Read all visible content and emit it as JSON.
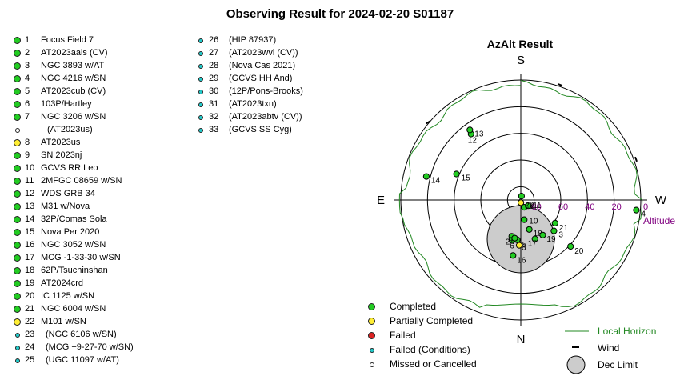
{
  "title": "Observing Result for 2024-02-20 S01187",
  "colors": {
    "completed": "#22cc22",
    "partial": "#ffee33",
    "failed": "#dd2222",
    "failed_conditions": "#22cccc",
    "missed": "#ffffff",
    "horizon": "#228822",
    "altitude_label": "#800080",
    "dec_limit": "#cccccc"
  },
  "targets_col1": [
    {
      "num": "1",
      "name": "Focus Field 7",
      "status": "completed"
    },
    {
      "num": "2",
      "name": "AT2023aais (CV)",
      "status": "completed"
    },
    {
      "num": "3",
      "name": "NGC 3893 w/AT",
      "status": "completed"
    },
    {
      "num": "4",
      "name": "NGC 4216 w/SN",
      "status": "completed"
    },
    {
      "num": "5",
      "name": "AT2023cub (CV)",
      "status": "completed"
    },
    {
      "num": "6",
      "name": "103P/Hartley",
      "status": "completed"
    },
    {
      "num": "7",
      "name": "NGC 3206 w/SN",
      "status": "completed"
    },
    {
      "num": "",
      "name": "(AT2023us)",
      "status": "missed"
    },
    {
      "num": "8",
      "name": "AT2023us",
      "status": "partial"
    },
    {
      "num": "9",
      "name": "SN 2023nj",
      "status": "completed"
    },
    {
      "num": "10",
      "name": "GCVS RR Leo",
      "status": "completed"
    },
    {
      "num": "11",
      "name": "2MFGC 08659 w/SN",
      "status": "completed"
    },
    {
      "num": "12",
      "name": "WDS GRB 34",
      "status": "completed"
    },
    {
      "num": "13",
      "name": "M31 w/Nova",
      "status": "completed"
    },
    {
      "num": "14",
      "name": "32P/Comas Sola",
      "status": "completed"
    },
    {
      "num": "15",
      "name": "Nova Per 2020",
      "status": "completed"
    },
    {
      "num": "16",
      "name": "NGC 3052 w/SN",
      "status": "completed"
    },
    {
      "num": "17",
      "name": "MCG -1-33-30 w/SN",
      "status": "completed"
    },
    {
      "num": "18",
      "name": "62P/Tsuchinshan",
      "status": "completed"
    },
    {
      "num": "19",
      "name": "AT2024crd",
      "status": "completed"
    },
    {
      "num": "20",
      "name": "IC 1125 w/SN",
      "status": "completed"
    },
    {
      "num": "21",
      "name": "NGC 6004 w/SN",
      "status": "completed"
    },
    {
      "num": "22",
      "name": "M101 w/SN",
      "status": "partial"
    },
    {
      "num": "23",
      "name": "(NGC 6106 w/SN)",
      "status": "failed_conditions"
    },
    {
      "num": "24",
      "name": "(MCG +9-27-70 w/SN)",
      "status": "failed_conditions"
    },
    {
      "num": "25",
      "name": "(UGC 11097 w/AT)",
      "status": "failed_conditions"
    }
  ],
  "targets_col2": [
    {
      "num": "26",
      "name": "(HIP 87937)",
      "status": "failed_conditions"
    },
    {
      "num": "27",
      "name": "(AT2023wvl (CV))",
      "status": "failed_conditions"
    },
    {
      "num": "28",
      "name": "(Nova Cas 2021)",
      "status": "failed_conditions"
    },
    {
      "num": "29",
      "name": "(GCVS HH And)",
      "status": "failed_conditions"
    },
    {
      "num": "30",
      "name": "(12P/Pons-Brooks)",
      "status": "failed_conditions"
    },
    {
      "num": "31",
      "name": "(AT2023txn)",
      "status": "failed_conditions"
    },
    {
      "num": "32",
      "name": "(AT2023abtv (CV))",
      "status": "failed_conditions"
    },
    {
      "num": "33",
      "name": "(GCVS SS Cyg)",
      "status": "failed_conditions"
    }
  ],
  "chart_data": {
    "type": "scatter",
    "projection": "polar azimuth-altitude",
    "title": "AzAlt Result",
    "compass": {
      "top": "S",
      "bottom": "N",
      "left": "E",
      "right": "W"
    },
    "altitude_axis_label": "Altitude",
    "altitude_ticks": [
      "80",
      "60",
      "40",
      "20",
      "0"
    ],
    "altitude_tick_values": [
      80,
      60,
      40,
      20,
      0
    ],
    "altitude_range": [
      0,
      90
    ],
    "points": [
      {
        "label": "1",
        "az": 205,
        "alt": 84,
        "status": "completed"
      },
      {
        "label": "2",
        "az": 166,
        "alt": 62,
        "status": "completed"
      },
      {
        "label": "3",
        "az": 227,
        "alt": 56,
        "status": "completed"
      },
      {
        "label": "4",
        "az": 265,
        "alt": 3,
        "status": "completed"
      },
      {
        "label": "5",
        "az": 175,
        "alt": 60,
        "status": "completed"
      },
      {
        "label": "6",
        "az": 168,
        "alt": 59,
        "status": "completed"
      },
      {
        "label": "7",
        "az": 350,
        "alt": 87,
        "status": "completed"
      },
      {
        "label": "8",
        "az": 178,
        "alt": 56,
        "status": "partial"
      },
      {
        "label": "9",
        "az": 171,
        "alt": 61,
        "status": "completed"
      },
      {
        "label": "10",
        "az": 190,
        "alt": 75,
        "status": "completed"
      },
      {
        "label": "11",
        "az": 232,
        "alt": 83,
        "status": "completed"
      },
      {
        "label": "12",
        "az": 37,
        "alt": 28,
        "status": "completed"
      },
      {
        "label": "13",
        "az": 36,
        "alt": 25,
        "status": "completed"
      },
      {
        "label": "14",
        "az": 76,
        "alt": 17,
        "status": "completed"
      },
      {
        "label": "15",
        "az": 68,
        "alt": 38,
        "status": "completed"
      },
      {
        "label": "16",
        "az": 172,
        "alt": 48,
        "status": "completed"
      },
      {
        "label": "17",
        "az": 200,
        "alt": 59,
        "status": "completed"
      },
      {
        "label": "18",
        "az": 196,
        "alt": 67,
        "status": "completed"
      },
      {
        "label": "19",
        "az": 212,
        "alt": 59,
        "status": "completed"
      },
      {
        "label": "20",
        "az": 227,
        "alt": 39,
        "status": "completed"
      },
      {
        "label": "21",
        "az": 236,
        "alt": 59,
        "status": "completed"
      },
      {
        "label": "22",
        "az": 181,
        "alt": 88,
        "status": "partial"
      }
    ],
    "legend": {
      "completed": "Completed",
      "partial": "Partially Completed",
      "failed": "Failed",
      "failed_conditions": "Failed (Conditions)",
      "missed": "Missed or Cancelled",
      "horizon": "Local Horizon",
      "wind": "Wind",
      "dec_limit": "Dec Limit"
    }
  }
}
